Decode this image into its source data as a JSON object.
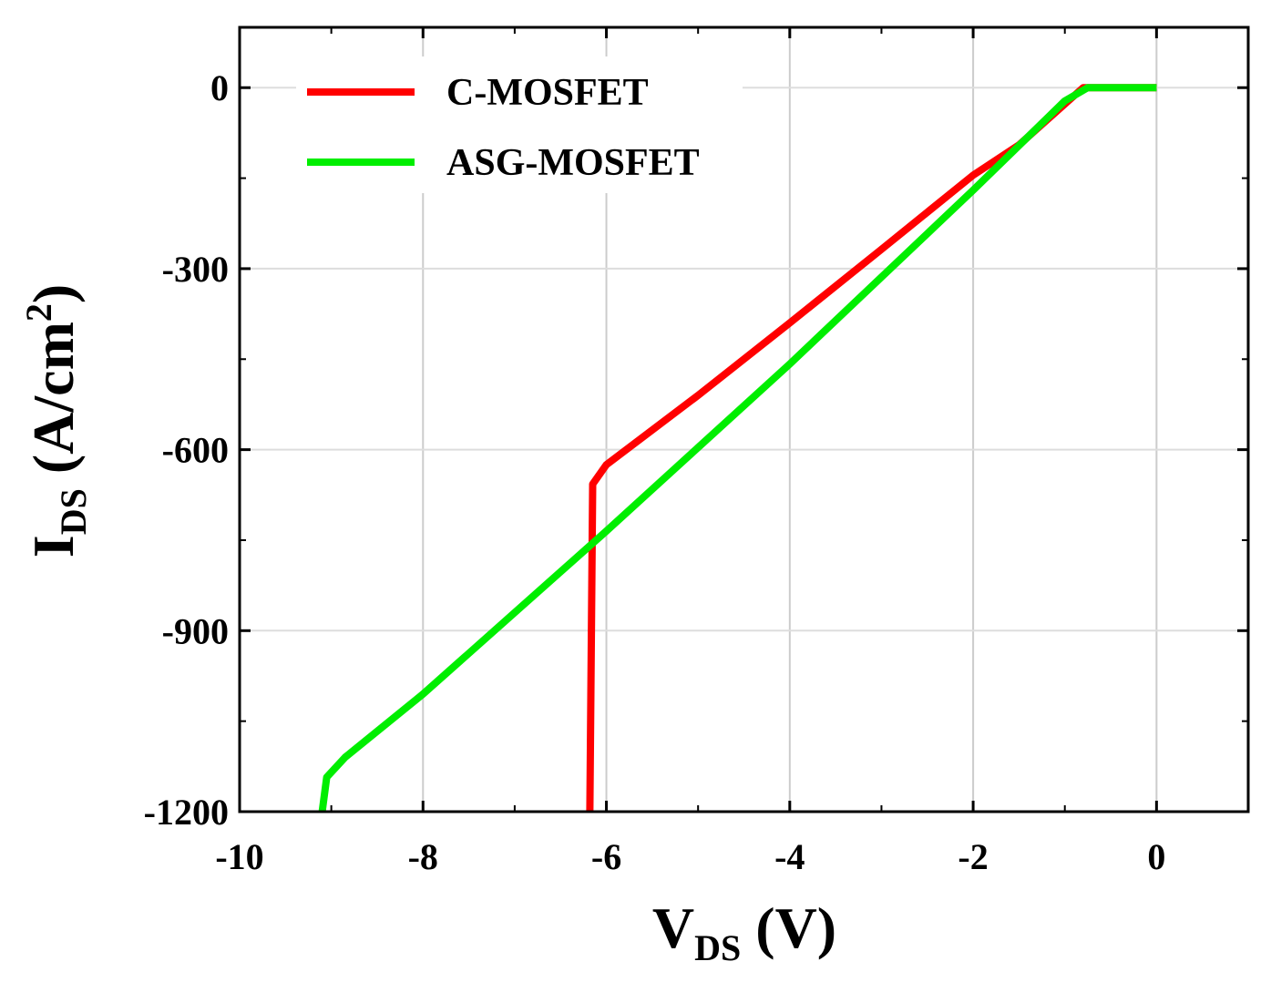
{
  "chart_data": {
    "type": "line",
    "x_axis": {
      "label_main": "V",
      "label_sub": "DS",
      "label_unit": " (V)",
      "range": [
        -10,
        1
      ],
      "ticks": [
        -10,
        -8,
        -6,
        -4,
        -2,
        0
      ],
      "tick_labels": [
        "-10",
        "-8",
        "-6",
        "-4",
        "-2",
        "0"
      ]
    },
    "y_axis": {
      "label_main": "I",
      "label_sub": "DS",
      "label_unit_open": " (A/cm",
      "label_unit_sup": "2",
      "label_unit_close": ")",
      "range": [
        -1200,
        100
      ],
      "ticks": [
        0,
        -300,
        -600,
        -900,
        -1200
      ],
      "tick_labels": [
        "0",
        "-300",
        "-600",
        "-900",
        "-1200"
      ]
    },
    "grid": true,
    "legend_position": "top-left",
    "series": [
      {
        "name": "C-MOSFET",
        "color": "#ff0000",
        "points": [
          [
            0,
            0
          ],
          [
            -0.8,
            0
          ],
          [
            -1.5,
            -95
          ],
          [
            -2,
            -145
          ],
          [
            -3,
            -268
          ],
          [
            -4,
            -390
          ],
          [
            -5,
            -510
          ],
          [
            -6,
            -625
          ],
          [
            -6.15,
            -657
          ],
          [
            -6.18,
            -1200
          ]
        ]
      },
      {
        "name": "ASG-MOSFET",
        "color": "#00ee00",
        "points": [
          [
            0,
            0
          ],
          [
            -0.75,
            0
          ],
          [
            -1,
            -22
          ],
          [
            -2,
            -170
          ],
          [
            -4,
            -458
          ],
          [
            -6,
            -735
          ],
          [
            -8,
            -1005
          ],
          [
            -8.85,
            -1110
          ],
          [
            -9.05,
            -1143
          ],
          [
            -9.1,
            -1200
          ]
        ]
      }
    ]
  }
}
